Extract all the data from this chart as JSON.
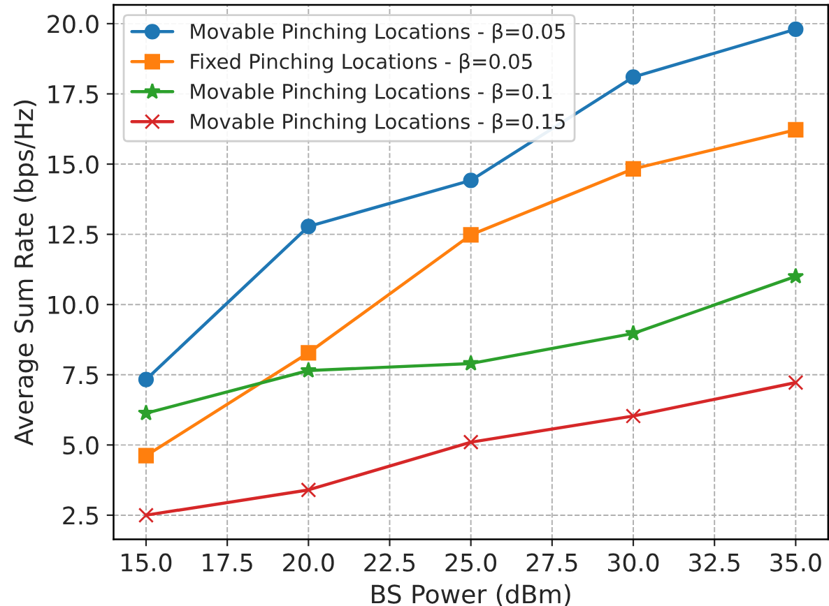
{
  "chart_data": {
    "type": "line",
    "xlabel": "BS Power (dBm)",
    "ylabel": "Average Sum Rate (bps/Hz)",
    "x": [
      15,
      20,
      25,
      30,
      35
    ],
    "series": [
      {
        "name": "Movable Pinching Locations - β=0.05",
        "color": "#1f77b4",
        "marker": "circle",
        "values": [
          7.33,
          12.78,
          14.42,
          18.1,
          19.8
        ]
      },
      {
        "name": "Fixed Pinching Locations - β=0.05",
        "color": "#ff7f0e",
        "marker": "square",
        "values": [
          4.62,
          8.28,
          12.48,
          14.83,
          16.22
        ]
      },
      {
        "name": "Movable Pinching Locations - β=0.1",
        "color": "#2ca02c",
        "marker": "star",
        "values": [
          6.13,
          7.65,
          7.9,
          8.97,
          11.0
        ]
      },
      {
        "name": "Movable Pinching Locations - β=0.15",
        "color": "#d62728",
        "marker": "cross",
        "values": [
          2.5,
          3.4,
          5.1,
          6.03,
          7.22
        ]
      }
    ],
    "xlim": [
      14,
      36
    ],
    "xticks": [
      {
        "value": 15,
        "label": "15.0"
      },
      {
        "value": 17.5,
        "label": "17.5"
      },
      {
        "value": 20,
        "label": "20.0"
      },
      {
        "value": 22.5,
        "label": "22.5"
      },
      {
        "value": 25,
        "label": "25.0"
      },
      {
        "value": 27.5,
        "label": "27.5"
      },
      {
        "value": 30,
        "label": "30.0"
      },
      {
        "value": 32.5,
        "label": "32.5"
      },
      {
        "value": 35,
        "label": "35.0"
      }
    ],
    "ylim": [
      1.64,
      20.67
    ],
    "yticks": [
      2.5,
      {
        "value": 5,
        "label": "5.0"
      },
      7.5,
      {
        "value": 10,
        "label": "10.0"
      },
      12.5,
      {
        "value": 15,
        "label": "15.0"
      },
      17.5,
      {
        "value": 20,
        "label": "20.0"
      }
    ],
    "grid": true,
    "legend": "top left",
    "line_style": "solid"
  }
}
